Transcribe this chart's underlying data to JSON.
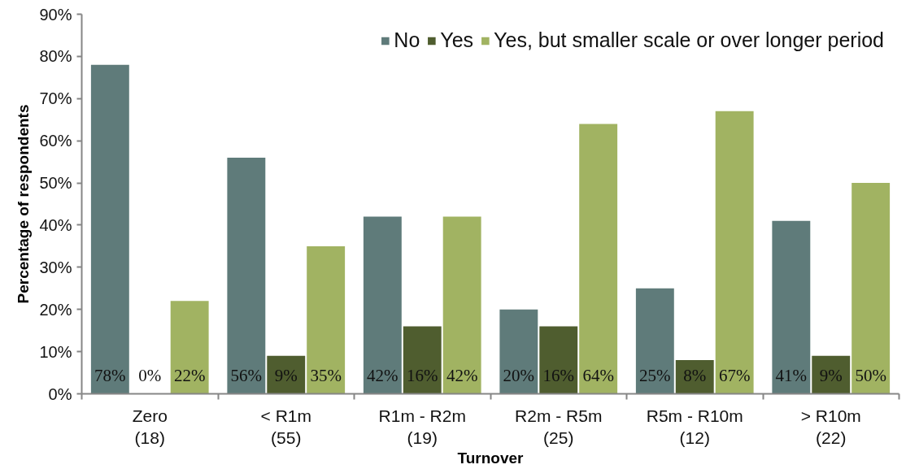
{
  "chart_data": {
    "type": "bar",
    "xlabel": "Turnover",
    "ylabel": "Percentage of respondents",
    "categories": [
      "Zero\n(18)",
      "< R1m\n(55)",
      "R1m - R2m\n(19)",
      "R2m - R5m\n(25)",
      "R5m - R10m\n(12)",
      "> R10m\n(22)"
    ],
    "series": [
      {
        "name": "No",
        "color": "#5f7b7a",
        "values": [
          78,
          56,
          42,
          20,
          25,
          41
        ],
        "value_labels": [
          "78%",
          "56%",
          "42%",
          "20%",
          "25%",
          "41%"
        ]
      },
      {
        "name": "Yes",
        "color": "#4f5d2f",
        "values": [
          0,
          9,
          16,
          16,
          8,
          9
        ],
        "value_labels": [
          "0%",
          "9%",
          "16%",
          "16%",
          "8%",
          "9%"
        ]
      },
      {
        "name": "Yes, but smaller scale or over longer period",
        "color": "#a1b362",
        "values": [
          22,
          35,
          42,
          64,
          67,
          50
        ],
        "value_labels": [
          "22%",
          "35%",
          "42%",
          "64%",
          "67%",
          "50%"
        ]
      }
    ],
    "ylim": [
      0,
      90
    ],
    "yticks": [
      {
        "value": 0,
        "label": "0%"
      },
      {
        "value": 10,
        "label": "10%"
      },
      {
        "value": 20,
        "label": "20%"
      },
      {
        "value": 30,
        "label": "30%"
      },
      {
        "value": 40,
        "label": "40%"
      },
      {
        "value": 50,
        "label": "50%"
      },
      {
        "value": 60,
        "label": "60%"
      },
      {
        "value": 70,
        "label": "70%"
      },
      {
        "value": 80,
        "label": "80%"
      },
      {
        "value": 90,
        "label": "90%"
      }
    ],
    "grid": false,
    "legend": "top right"
  }
}
